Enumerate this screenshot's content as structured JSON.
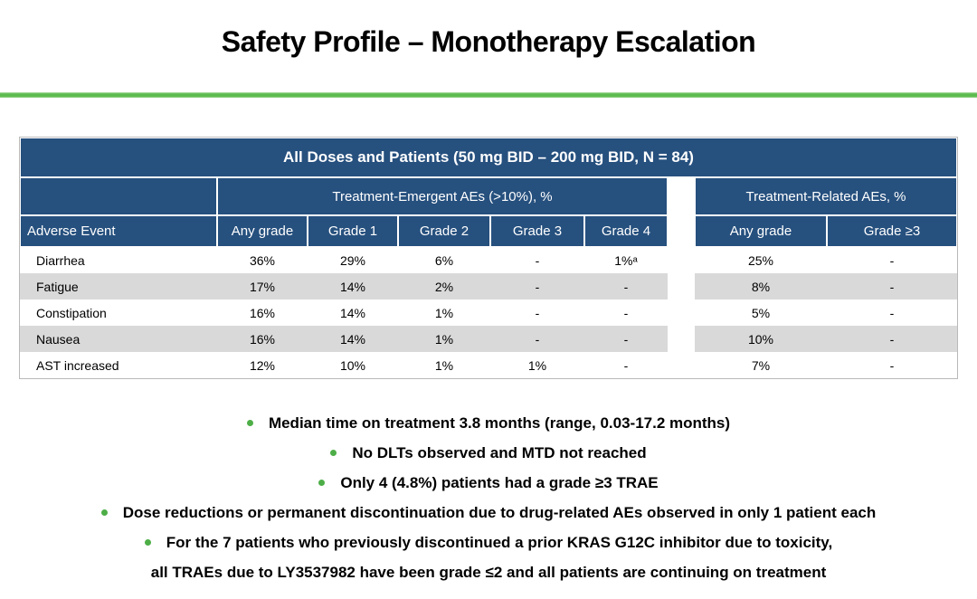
{
  "slide": {
    "title": "Safety Profile – Monotherapy Escalation"
  },
  "theme": {
    "header_blue": "#26507E",
    "accent_green": "#5CBB4E",
    "bullet_green": "#4DAE47",
    "stripe_gray": "#D9D9D9"
  },
  "table": {
    "banner": "All Doses and Patients (50 mg BID – 200 mg BID, N = 84)",
    "te_group_header": "Treatment-Emergent AEs (>10%), %",
    "tr_group_header": "Treatment-Related AEs, %",
    "columns": [
      "Adverse Event",
      "Any grade",
      "Grade 1",
      "Grade 2",
      "Grade 3",
      "Grade 4",
      "Any grade",
      "Grade ≥3"
    ],
    "rows": [
      [
        "Diarrhea",
        "36%",
        "29%",
        "6%",
        "-",
        "1%ᵃ",
        "25%",
        "-"
      ],
      [
        "Fatigue",
        "17%",
        "14%",
        "2%",
        "-",
        "-",
        "8%",
        "-"
      ],
      [
        "Constipation",
        "16%",
        "14%",
        "1%",
        "-",
        "-",
        "5%",
        "-"
      ],
      [
        "Nausea",
        "16%",
        "14%",
        "1%",
        "-",
        "-",
        "10%",
        "-"
      ],
      [
        "AST increased",
        "12%",
        "10%",
        "1%",
        "1%",
        "-",
        "7%",
        "-"
      ]
    ]
  },
  "bullets": [
    {
      "text": "Median time on treatment 3.8 months (range, 0.03-17.2 months)"
    },
    {
      "text": "No DLTs observed and MTD not reached"
    },
    {
      "text": "Only 4 (4.8%) patients had a grade ≥3 TRAE"
    },
    {
      "text": "Dose reductions or permanent discontinuation due to drug-related AEs observed in only 1 patient each"
    },
    {
      "text": "For the 7 patients who previously discontinued a prior KRAS G12C inhibitor due to toxicity,"
    },
    {
      "text": "all TRAEs due to LY3537982 have been grade ≤2 and all patients are continuing on treatment"
    }
  ]
}
